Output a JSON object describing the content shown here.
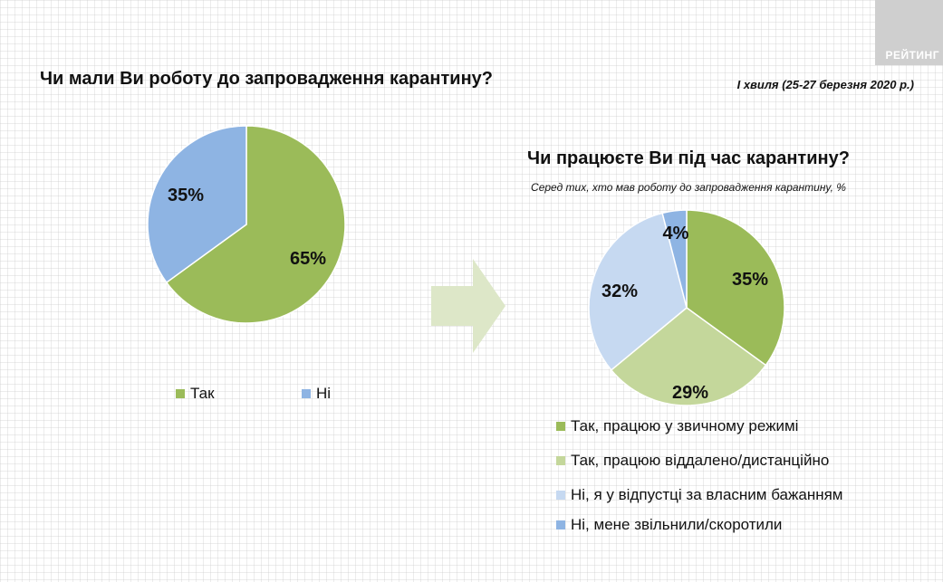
{
  "brand": "РЕЙТИНГ",
  "chart_data": [
    {
      "type": "pie",
      "title": "Чи мали Ви роботу до запровадження карантину?",
      "wave_note": "І хвиля (25-27 березня 2020 р.)",
      "slices": [
        {
          "label": "Так",
          "value": 65,
          "value_label": "65%",
          "color": "#9bbb59"
        },
        {
          "label": "Ні",
          "value": 35,
          "value_label": "35%",
          "color": "#8eb4e3"
        }
      ]
    },
    {
      "type": "pie",
      "title": "Чи працюєте Ви під час карантину?",
      "subtitle": "Серед тих, хто мав роботу до запровадження карантину, %",
      "slices": [
        {
          "label": "Так, працюю у звичному режимі",
          "value": 35,
          "value_label": "35%",
          "color": "#9bbb59"
        },
        {
          "label": "Так, працюю віддалено/дистанційно",
          "value": 29,
          "value_label": "29%",
          "color": "#c4d79b"
        },
        {
          "label": "Ні, я у відпустці за власним бажанням",
          "value": 32,
          "value_label": "32%",
          "color": "#c6d9f1"
        },
        {
          "label": "Ні, мене звільнили/скоротили",
          "value": 4,
          "value_label": "4%",
          "color": "#8eb4e3"
        }
      ]
    }
  ]
}
